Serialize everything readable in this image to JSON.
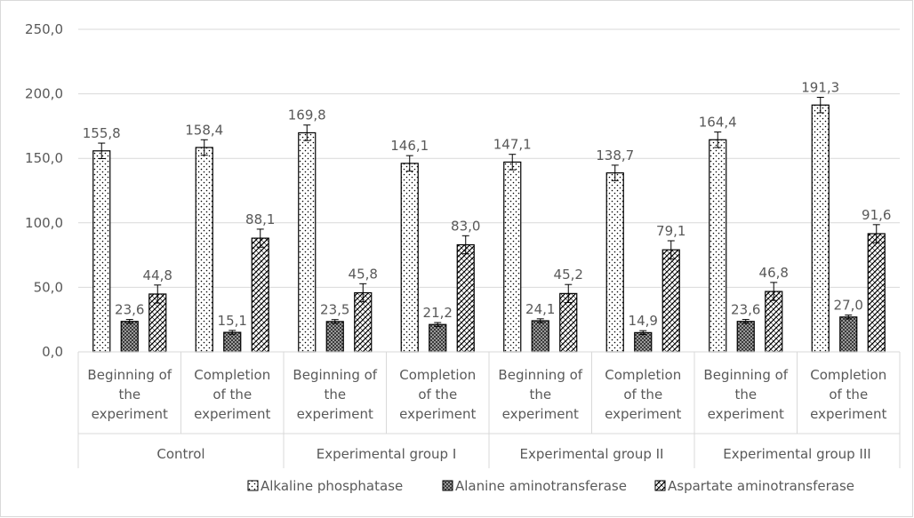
{
  "chart_data": {
    "type": "bar",
    "title": "",
    "xlabel": "",
    "ylabel": "",
    "ylim": [
      0,
      250
    ],
    "yticks": [
      "0,0",
      "50,0",
      "100,0",
      "150,0",
      "200,0",
      "250,0"
    ],
    "grid": true,
    "legend_position": "bottom",
    "categories": [
      "Beginning of the experiment",
      "Completion of the experiment",
      "Beginning of the experiment",
      "Completion of the experiment",
      "Beginning of the experiment",
      "Completion of the experiment",
      "Beginning of the experiment",
      "Completion of the experiment"
    ],
    "category_lines": [
      [
        "Beginning of",
        "the",
        "experiment"
      ],
      [
        "Completion",
        "of the",
        "experiment"
      ],
      [
        "Beginning of",
        "the",
        "experiment"
      ],
      [
        "Completion",
        "of the",
        "experiment"
      ],
      [
        "Beginning of",
        "the",
        "experiment"
      ],
      [
        "Completion",
        "of the",
        "experiment"
      ],
      [
        "Beginning of",
        "the",
        "experiment"
      ],
      [
        "Completion",
        "of the",
        "experiment"
      ]
    ],
    "groups": [
      "Control",
      "Experimental group I",
      "Experimental group II",
      "Experimental group III"
    ],
    "series": [
      {
        "name": "Alkaline phosphatase",
        "pattern": "dots",
        "values": [
          155.8,
          158.4,
          169.8,
          146.1,
          147.1,
          138.7,
          164.4,
          191.3
        ],
        "labels": [
          "155,8",
          "158,4",
          "169,8",
          "146,1",
          "147,1",
          "138,7",
          "164,4",
          "191,3"
        ],
        "error": 6
      },
      {
        "name": "Alanine aminotransferase",
        "pattern": "dark-checker",
        "values": [
          23.6,
          15.1,
          23.5,
          21.2,
          24.1,
          14.9,
          23.6,
          27.0
        ],
        "labels": [
          "23,6",
          "15,1",
          "23,5",
          "21,2",
          "24,1",
          "14,9",
          "23,6",
          "27,0"
        ],
        "error": 1.5
      },
      {
        "name": "Aspartate aminotransferase",
        "pattern": "diagonal-hatch",
        "values": [
          44.8,
          88.1,
          45.8,
          83.0,
          45.2,
          79.1,
          46.8,
          91.6
        ],
        "labels": [
          "44,8",
          "88,1",
          "45,8",
          "83,0",
          "45,2",
          "79,1",
          "46,8",
          "91,6"
        ],
        "error": 7
      }
    ]
  },
  "colors": {
    "bar_outline": "#000000",
    "grid": "#d9d9d9",
    "text": "#595959"
  }
}
